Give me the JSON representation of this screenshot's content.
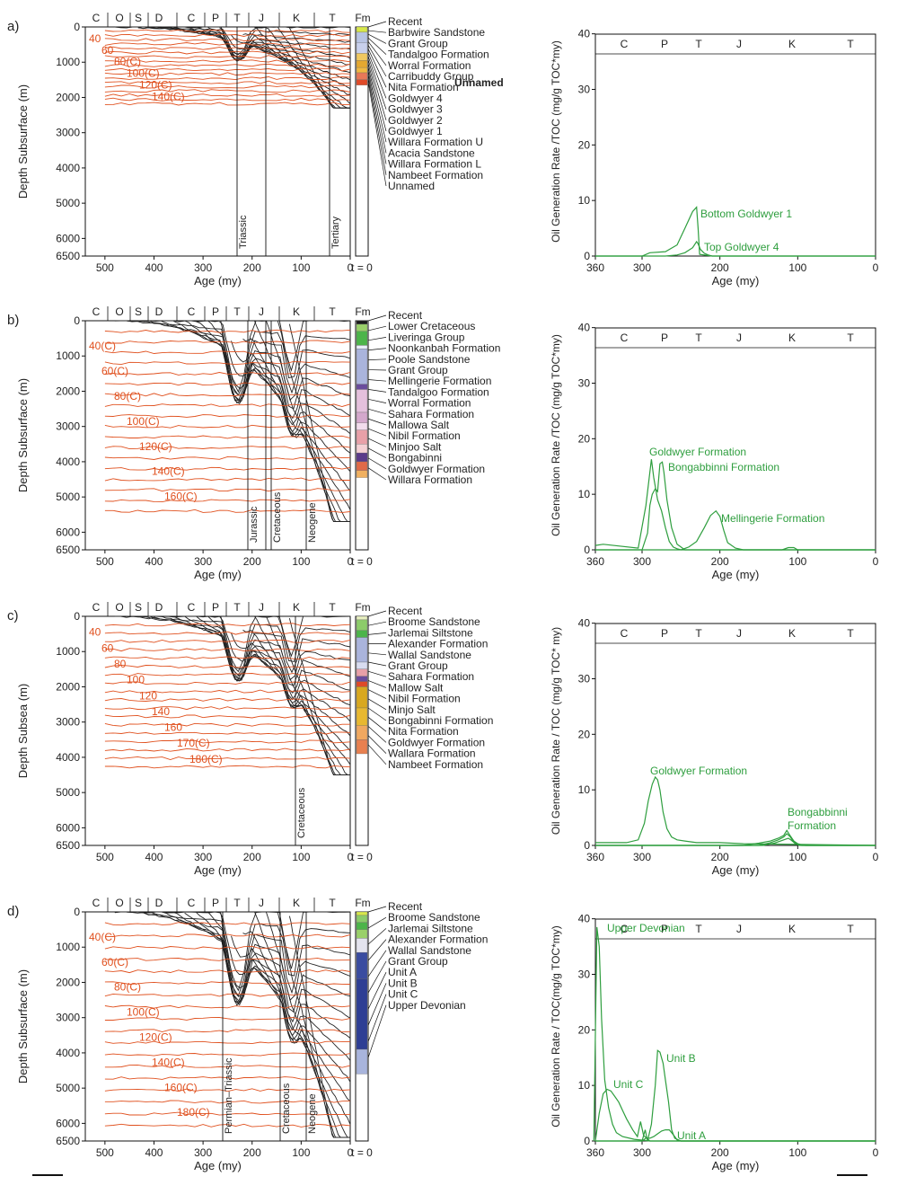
{
  "panel_labels": [
    "a)",
    "b)",
    "c)",
    "d)"
  ],
  "depth_label_subsurface": "Depth Subsurface (m)",
  "depth_label_subsea": "Depth Subsea (m)",
  "age_label": "Age (my)",
  "gen_label_a": "Oil Generation Rate /TOC (mg/g TOC*my)",
  "gen_label_b": "Oil Generation Rate /TOC (mg/g TOC*my)",
  "gen_label_c": "Oil Generation Rate / TOC (mg/g TOC* my)",
  "gen_label_d": "Oil Generation Rate / TOC(mg/g TOC*my)",
  "fm_header": "Fm",
  "t_zero": "t = 0",
  "period_bar_burial": [
    "C",
    "O",
    "S",
    "D",
    "C",
    "P",
    "T",
    "J",
    "K",
    "T"
  ],
  "period_bar_gen": [
    "C",
    "P",
    "T",
    "J",
    "K",
    "T"
  ],
  "depth_ticks": [
    "0",
    "1000",
    "2000",
    "3000",
    "4000",
    "5000",
    "6000",
    "6500"
  ],
  "burial_age_ticks": [
    "500",
    "400",
    "300",
    "200",
    "100",
    "0"
  ],
  "gen_age_ticks": [
    "360",
    "300",
    "200",
    "100",
    "0"
  ],
  "gen_y_ticks": [
    "0",
    "10",
    "20",
    "30",
    "40"
  ],
  "colors": {
    "burial": "#222222",
    "isotherm": "#e0501e",
    "generation": "#2e9e3e",
    "frame": "#111111"
  },
  "panels": [
    {
      "id": "a",
      "depth_label": "Depth Subsurface (m)",
      "max_depth": 2300,
      "isotherm_labels": [
        "40",
        "60",
        "80(C)",
        "100(C)",
        "120(C)",
        "140(C)"
      ],
      "period_markers": [
        "Triassic",
        "Tertiary"
      ],
      "formations": [
        "Recent",
        "Barbwire Sandstone",
        "Grant Group",
        "Tandalgoo Formation",
        "Worral Formation",
        "Carribuddy Group",
        "Nita Formation",
        "Goldwyer 4",
        "Goldwyer 3",
        "Goldwyer 2",
        "Goldwyer 1",
        "Willara Formation U",
        "Acacia Sandstone",
        "Willara Formation L",
        "Nambeet Formation",
        "Unnamed"
      ],
      "formation_extra": "Unnamed",
      "fm_column": [
        {
          "depth_top": 0,
          "depth_bottom": 150,
          "color": "#d8e84a"
        },
        {
          "depth_top": 150,
          "depth_bottom": 450,
          "color": "#b8c4e4"
        },
        {
          "depth_top": 450,
          "depth_bottom": 750,
          "color": "#c8d0ec"
        },
        {
          "depth_top": 750,
          "depth_bottom": 950,
          "color": "#f0c860"
        },
        {
          "depth_top": 950,
          "depth_bottom": 1150,
          "color": "#e4a830"
        },
        {
          "depth_top": 1150,
          "depth_bottom": 1300,
          "color": "#f0b840"
        },
        {
          "depth_top": 1300,
          "depth_bottom": 1500,
          "color": "#e87858"
        },
        {
          "depth_top": 1500,
          "depth_bottom": 1650,
          "color": "#e04a28"
        }
      ],
      "generation": {
        "ylabel": "Oil Generation Rate /TOC (mg/g TOC*my)",
        "annotations": [
          "Bottom Goldwyer 1",
          "Top Goldwyer 4"
        ]
      }
    },
    {
      "id": "b",
      "depth_label": "Depth Subsurface (m)",
      "max_depth": 5700,
      "isotherm_labels": [
        "40(C)",
        "60(C)",
        "80(C)",
        "100(C)",
        "120(C)",
        "140(C)",
        "160(C)"
      ],
      "period_markers": [
        "Jurassic",
        "Cretaceous",
        "Neogene"
      ],
      "formations": [
        "Recent",
        "Lower Cretaceous",
        "Liveringa Group",
        "Noonkanbah Formation",
        "Poole Sandstone",
        "Grant Group",
        "Mellingerie Formation",
        "Tandalgoo Formation",
        "Worral Formation",
        "Sahara Formation",
        "Mallowa Salt",
        "Nibil Formation",
        "Minjoo Salt",
        "Bongabinni",
        "Goldwyer Formation",
        "Willara Formation"
      ],
      "fm_column": [
        {
          "depth_top": 0,
          "depth_bottom": 100,
          "color": "#1a1a1a"
        },
        {
          "depth_top": 100,
          "depth_bottom": 300,
          "color": "#9ad06a"
        },
        {
          "depth_top": 300,
          "depth_bottom": 700,
          "color": "#4cb44a"
        },
        {
          "depth_top": 700,
          "depth_bottom": 800,
          "color": "#e8ecf8"
        },
        {
          "depth_top": 800,
          "depth_bottom": 1800,
          "color": "#aab4dc"
        },
        {
          "depth_top": 1800,
          "depth_bottom": 1950,
          "color": "#6a4c9c"
        },
        {
          "depth_top": 1950,
          "depth_bottom": 2600,
          "color": "#e4c0dc"
        },
        {
          "depth_top": 2600,
          "depth_bottom": 2900,
          "color": "#d4a8cc"
        },
        {
          "depth_top": 2900,
          "depth_bottom": 3100,
          "color": "#f2dcec"
        },
        {
          "depth_top": 3100,
          "depth_bottom": 3500,
          "color": "#e8a0a8"
        },
        {
          "depth_top": 3500,
          "depth_bottom": 3750,
          "color": "#f4d0d4"
        },
        {
          "depth_top": 3750,
          "depth_bottom": 4000,
          "color": "#5a3a8a"
        },
        {
          "depth_top": 4000,
          "depth_bottom": 4250,
          "color": "#e06a48"
        },
        {
          "depth_top": 4250,
          "depth_bottom": 4450,
          "color": "#f0b060"
        }
      ],
      "generation": {
        "ylabel": "Oil Generation Rate /TOC (mg/g TOC*my)",
        "annotations": [
          "Goldwyer Formation",
          "Bongabbinni Formation",
          "Mellingerie Formation"
        ]
      }
    },
    {
      "id": "c",
      "depth_label": "Depth Subsea (m)",
      "max_depth": 4500,
      "isotherm_labels": [
        "40",
        "60",
        "80",
        "100",
        "120",
        "140",
        "160",
        "170(C)",
        "180(C)"
      ],
      "period_markers": [
        "Cretaceous"
      ],
      "formations": [
        "Recent",
        "Broome Sandstone",
        "Jarlemai Siltstone",
        "Alexander Formation",
        "Wallal Sandstone",
        "Grant Group",
        "Sahara Formation",
        "Mallow Salt",
        "Nibil Formation",
        "Minjo Salt",
        "Bongabinni Formation",
        "Nita Formation",
        "Goldwyer Formation",
        "Wallara Formation",
        "Nambeet Formation"
      ],
      "fm_column": [
        {
          "depth_top": 0,
          "depth_bottom": 100,
          "color": "#e8f0c0"
        },
        {
          "depth_top": 100,
          "depth_bottom": 400,
          "color": "#8ccc6a"
        },
        {
          "depth_top": 400,
          "depth_bottom": 600,
          "color": "#4cb44a"
        },
        {
          "depth_top": 600,
          "depth_bottom": 1300,
          "color": "#aab4dc"
        },
        {
          "depth_top": 1300,
          "depth_bottom": 1500,
          "color": "#d8dcf0"
        },
        {
          "depth_top": 1500,
          "depth_bottom": 1700,
          "color": "#e8a0a8"
        },
        {
          "depth_top": 1700,
          "depth_bottom": 1850,
          "color": "#6a4c9c"
        },
        {
          "depth_top": 1850,
          "depth_bottom": 2000,
          "color": "#e04a28"
        },
        {
          "depth_top": 2000,
          "depth_bottom": 2600,
          "color": "#d8a820"
        },
        {
          "depth_top": 2600,
          "depth_bottom": 3100,
          "color": "#e8b830"
        },
        {
          "depth_top": 3100,
          "depth_bottom": 3500,
          "color": "#f0a860"
        },
        {
          "depth_top": 3500,
          "depth_bottom": 3900,
          "color": "#e88050"
        }
      ],
      "generation": {
        "ylabel": "Oil Generation Rate / TOC (mg/g TOC* my)",
        "annotations": [
          "Goldwyer Formation",
          "Bongabbinni",
          "Formation"
        ]
      }
    },
    {
      "id": "d",
      "depth_label": "Depth Subsurface (m)",
      "max_depth": 6400,
      "isotherm_labels": [
        "40(C)",
        "60(C)",
        "80(C)",
        "100(C)",
        "120(C)",
        "140(C)",
        "160(C)",
        "180(C)"
      ],
      "period_markers": [
        "Permian–Triassic",
        "Cretaceous",
        "Neogene"
      ],
      "formations": [
        "Recent",
        "Broome Sandstone",
        "Jarlemai Siltstone",
        "Alexander Formation",
        "Wallal Sandstone",
        "Grant Group",
        "Unit A",
        "Unit B",
        "Unit C",
        "Upper Devonian"
      ],
      "fm_column": [
        {
          "depth_top": 0,
          "depth_bottom": 100,
          "color": "#d8e84a"
        },
        {
          "depth_top": 100,
          "depth_bottom": 300,
          "color": "#8ccc6a"
        },
        {
          "depth_top": 300,
          "depth_bottom": 500,
          "color": "#4cb44a"
        },
        {
          "depth_top": 500,
          "depth_bottom": 750,
          "color": "#9ad06a"
        },
        {
          "depth_top": 750,
          "depth_bottom": 1150,
          "color": "#e4e4ee"
        },
        {
          "depth_top": 1150,
          "depth_bottom": 1900,
          "color": "#3a4ca0"
        },
        {
          "depth_top": 1900,
          "depth_bottom": 3900,
          "color": "#2e3e94"
        },
        {
          "depth_top": 3900,
          "depth_bottom": 4600,
          "color": "#a8b4dc"
        }
      ],
      "generation": {
        "ylabel": "Oil Generation Rate / TOC(mg/g TOC*my)",
        "annotations": [
          "Upper Devonian",
          "Unit C",
          "Unit B",
          "Unit A"
        ]
      }
    }
  ],
  "chart_data": [
    {
      "type": "line",
      "title": "",
      "xlabel": "Age (my)",
      "ylabel": "Oil Generation Rate /TOC (mg/g TOC*my)",
      "xlim": [
        360,
        0
      ],
      "ylim": [
        0,
        40
      ],
      "series": [
        {
          "name": "Bottom Goldwyer 1",
          "x": [
            360,
            300,
            290,
            270,
            255,
            245,
            235,
            230,
            228,
            226,
            210,
            100,
            0
          ],
          "values": [
            0,
            0,
            0.6,
            0.8,
            2,
            5,
            8,
            8.8,
            5,
            0.3,
            0,
            0,
            0
          ]
        },
        {
          "name": "Top Goldwyer 4",
          "x": [
            360,
            270,
            255,
            245,
            235,
            230,
            228,
            225,
            220,
            215,
            210,
            0
          ],
          "values": [
            0,
            0,
            0.2,
            0.6,
            1.5,
            2.6,
            2.2,
            1.2,
            0.5,
            0.2,
            0,
            0
          ]
        }
      ]
    },
    {
      "type": "line",
      "title": "",
      "xlabel": "Age (my)",
      "ylabel": "Oil Generation Rate /TOC (mg/g TOC*my)",
      "xlim": [
        360,
        0
      ],
      "ylim": [
        0,
        40
      ],
      "series": [
        {
          "name": "Goldwyer Formation",
          "x": [
            360,
            350,
            305,
            295,
            290,
            288,
            285,
            280,
            275,
            270,
            265,
            260,
            255,
            250,
            240,
            0
          ],
          "values": [
            0.8,
            1,
            0.3,
            8,
            14,
            16.3,
            13,
            9,
            7,
            4,
            1.5,
            0.5,
            0.2,
            0,
            0,
            0
          ]
        },
        {
          "name": "Bongabbinni Formation",
          "x": [
            360,
            300,
            293,
            290,
            287,
            283,
            280,
            277,
            274,
            272,
            268,
            262,
            255,
            245,
            0
          ],
          "values": [
            0,
            0,
            3,
            8,
            10,
            11,
            10.5,
            15.5,
            15.8,
            14,
            9,
            4,
            1,
            0,
            0
          ]
        },
        {
          "name": "Mellingerie Formation",
          "x": [
            360,
            250,
            240,
            230,
            220,
            212,
            205,
            200,
            195,
            190,
            180,
            170,
            120,
            112,
            105,
            100,
            0
          ],
          "values": [
            0,
            0,
            0.5,
            1.5,
            4,
            6.2,
            7,
            6,
            3.5,
            1.3,
            0.3,
            0,
            0,
            0.4,
            0.4,
            0,
            0
          ]
        }
      ]
    },
    {
      "type": "line",
      "title": "",
      "xlabel": "Age (my)",
      "ylabel": "Oil Generation Rate / TOC (mg/g TOC* my)",
      "xlim": [
        360,
        0
      ],
      "ylim": [
        0,
        40
      ],
      "series": [
        {
          "name": "Goldwyer Formation",
          "x": [
            360,
            320,
            305,
            297,
            292,
            287,
            283,
            280,
            277,
            273,
            268,
            262,
            255,
            245,
            230,
            200,
            170,
            0
          ],
          "values": [
            0.5,
            0.5,
            1,
            4,
            8,
            11,
            12.3,
            11.8,
            10,
            6,
            3,
            1.5,
            1,
            0.8,
            0.5,
            0.5,
            0.3,
            0
          ]
        },
        {
          "name": "Bongabbinni Formation",
          "x": [
            360,
            170,
            150,
            135,
            125,
            118,
            114,
            110,
            105,
            100,
            95,
            90,
            0
          ],
          "values": [
            0,
            0,
            0.4,
            0.8,
            1.3,
            1.8,
            2.7,
            1.8,
            0.8,
            0.3,
            0.1,
            0,
            0
          ]
        },
        {
          "name": "",
          "x": [
            360,
            150,
            135,
            125,
            118,
            114,
            110,
            105,
            100,
            95,
            0
          ],
          "values": [
            0,
            0,
            0.5,
            1,
            1.5,
            2.1,
            1.6,
            0.6,
            0.2,
            0,
            0
          ]
        },
        {
          "name": "",
          "x": [
            360,
            145,
            130,
            122,
            116,
            112,
            108,
            103,
            98,
            0
          ],
          "values": [
            0,
            0,
            0.4,
            0.8,
            1.1,
            1.3,
            0.9,
            0.3,
            0,
            0
          ]
        }
      ]
    },
    {
      "type": "line",
      "title": "",
      "xlabel": "Age (my)",
      "ylabel": "Oil Generation Rate / TOC(mg/g TOC*my)",
      "xlim": [
        360,
        0
      ],
      "ylim": [
        0,
        40
      ],
      "series": [
        {
          "name": "Upper Devonian",
          "x": [
            362,
            358,
            355,
            352,
            348,
            343,
            338,
            333,
            325,
            310,
            290,
            250,
            0
          ],
          "values": [
            0,
            38.5,
            35,
            22,
            11,
            6,
            3,
            1.5,
            0.8,
            0.3,
            0,
            0,
            0
          ]
        },
        {
          "name": "Unit C",
          "x": [
            360,
            355,
            350,
            345,
            340,
            335,
            330,
            325,
            320,
            312,
            306,
            302,
            298,
            290,
            0
          ],
          "values": [
            0,
            5,
            8.5,
            9.3,
            9,
            8,
            7,
            5.5,
            4,
            2,
            0.8,
            3.5,
            1,
            0,
            0
          ]
        },
        {
          "name": "Unit B",
          "x": [
            360,
            300,
            296,
            293,
            288,
            283,
            280,
            277,
            273,
            270,
            266,
            262,
            258,
            250,
            0
          ],
          "values": [
            0,
            0,
            2,
            0,
            3,
            10,
            16.3,
            16,
            14,
            11,
            7,
            2,
            0.5,
            0,
            0
          ]
        },
        {
          "name": "Unit A",
          "x": [
            360,
            300,
            295,
            290,
            285,
            280,
            275,
            270,
            265,
            262,
            258,
            255,
            250,
            240,
            0
          ],
          "values": [
            0,
            0,
            0.5,
            0.5,
            0.8,
            1.3,
            1.8,
            2,
            2,
            1.5,
            0.8,
            0.2,
            0,
            0,
            0
          ]
        }
      ]
    }
  ]
}
